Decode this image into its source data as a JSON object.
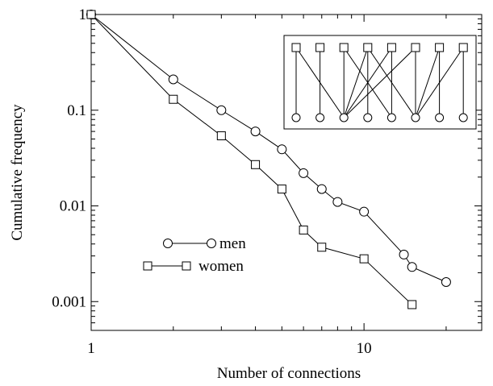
{
  "chart_data": {
    "type": "line",
    "xscale": "log",
    "yscale": "log",
    "xlim": [
      1,
      27
    ],
    "ylim": [
      0.0005,
      1
    ],
    "xlabel": "Number of connections",
    "ylabel": "Cumulative frequency",
    "xticks": [
      {
        "value": 1,
        "label": "1"
      },
      {
        "value": 10,
        "label": "10"
      }
    ],
    "yticks": [
      {
        "value": 1,
        "label": "1"
      },
      {
        "value": 0.1,
        "label": "0.1"
      },
      {
        "value": 0.01,
        "label": "0.01"
      },
      {
        "value": 0.001,
        "label": "0.001"
      }
    ],
    "legend_position": "bottom-left",
    "series": [
      {
        "name": "men",
        "marker": "circle",
        "x": [
          1,
          2,
          3,
          4,
          5,
          6,
          7,
          8,
          10,
          14,
          15,
          20
        ],
        "y": [
          1,
          0.21,
          0.1,
          0.06,
          0.039,
          0.022,
          0.015,
          0.011,
          0.0087,
          0.0031,
          0.0023,
          0.0016
        ]
      },
      {
        "name": "women",
        "marker": "square",
        "x": [
          1,
          2,
          3,
          4,
          5,
          6,
          7,
          10,
          15
        ],
        "y": [
          1,
          0.13,
          0.054,
          0.027,
          0.015,
          0.0056,
          0.0037,
          0.0028,
          0.00093
        ]
      }
    ],
    "inset": {
      "type": "bipartite-network",
      "top_marker": "square",
      "bottom_marker": "circle",
      "top_count": 8,
      "bottom_count": 8,
      "edges": [
        [
          1,
          1
        ],
        [
          1,
          3
        ],
        [
          2,
          2
        ],
        [
          3,
          3
        ],
        [
          3,
          5
        ],
        [
          4,
          3
        ],
        [
          4,
          4
        ],
        [
          4,
          6
        ],
        [
          5,
          3
        ],
        [
          5,
          5
        ],
        [
          6,
          3
        ],
        [
          6,
          6
        ],
        [
          7,
          6
        ],
        [
          7,
          7
        ],
        [
          8,
          6
        ],
        [
          8,
          8
        ]
      ]
    }
  }
}
